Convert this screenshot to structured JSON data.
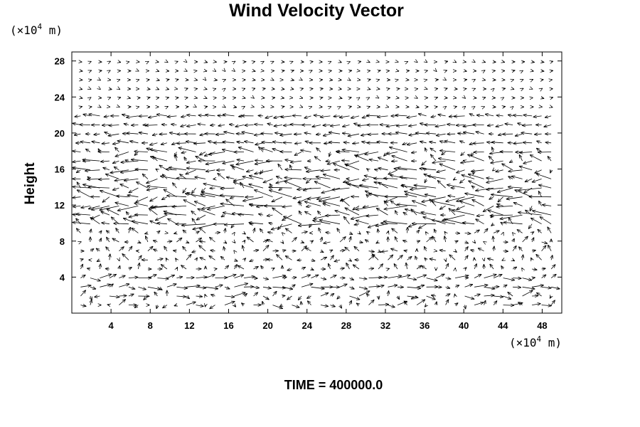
{
  "chart_data": {
    "type": "vector-field",
    "title": "Wind Velocity Vector",
    "x_unit": {
      "prefix": "(×10",
      "exponent": "4",
      "suffix": " m)"
    },
    "y_unit": {
      "prefix": "(×10",
      "exponent": "4",
      "suffix": " m)"
    },
    "ylabel": "Height",
    "xlim": [
      0,
      50
    ],
    "ylim": [
      0,
      29
    ],
    "x_ticks": [
      4,
      8,
      12,
      16,
      20,
      24,
      28,
      32,
      36,
      40,
      44,
      48
    ],
    "y_ticks": [
      4,
      8,
      12,
      16,
      20,
      24,
      28
    ],
    "grid": false,
    "footer": "TIME = 400000.0",
    "bands": [
      {
        "y_range": [
          0,
          2.2
        ],
        "u": 0.3,
        "v": 0.08,
        "var": 0.9
      },
      {
        "y_range": [
          2.2,
          4.5
        ],
        "u": 0.9,
        "v": 0.05,
        "var": 0.6
      },
      {
        "y_range": [
          4.5,
          9.5
        ],
        "u": -0.05,
        "v": 0.25,
        "var": 0.7
      },
      {
        "y_range": [
          9.5,
          14.5
        ],
        "u": -1.4,
        "v": 0.1,
        "var": 1.2
      },
      {
        "y_range": [
          14.5,
          18.0
        ],
        "u": -1.1,
        "v": 0.1,
        "var": 1.0
      },
      {
        "y_range": [
          18.0,
          22.0
        ],
        "u": -0.9,
        "v": 0.0,
        "var": 0.4
      },
      {
        "y_range": [
          22.0,
          29.0
        ],
        "u": 0.15,
        "v": 0.0,
        "var": 0.1
      }
    ]
  }
}
